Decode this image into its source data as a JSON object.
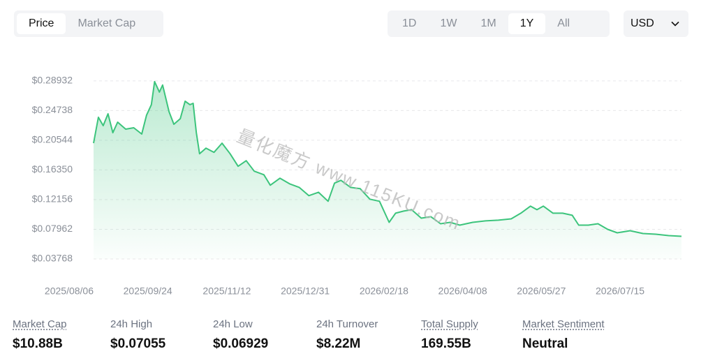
{
  "tabs": [
    "Price",
    "Market Cap"
  ],
  "active_tab": 0,
  "ranges": [
    "1D",
    "1W",
    "1M",
    "1Y",
    "All"
  ],
  "active_range": 3,
  "currency": "USD",
  "watermark": "量化魔方 www.115KU.com",
  "chart_data": {
    "type": "line",
    "color": "#3cc47c",
    "grid": true,
    "x": [
      "2025/08/06",
      "2025/08/09",
      "2025/08/12",
      "2025/08/15",
      "2025/08/18",
      "2025/08/21",
      "2025/08/26",
      "2025/08/31",
      "2025/09/05",
      "2025/09/08",
      "2025/09/11",
      "2025/09/13",
      "2025/09/16",
      "2025/09/18",
      "2025/09/22",
      "2025/09/25",
      "2025/09/29",
      "2025/10/02",
      "2025/10/05",
      "2025/10/07",
      "2025/10/09",
      "2025/10/11",
      "2025/10/15",
      "2025/10/20",
      "2025/10/25",
      "2025/10/30",
      "2025/11/04",
      "2025/11/09",
      "2025/11/14",
      "2025/11/20",
      "2025/11/24",
      "2025/11/30",
      "2025/12/06",
      "2025/12/12",
      "2025/12/18",
      "2025/12/24",
      "2025/12/30",
      "2026/01/03",
      "2026/01/07",
      "2026/01/13",
      "2026/01/19",
      "2026/01/25",
      "2026/01/31",
      "2026/02/06",
      "2026/02/10",
      "2026/02/15",
      "2026/02/20",
      "2026/02/26",
      "2026/03/04",
      "2026/03/10",
      "2026/03/16",
      "2026/03/22",
      "2026/03/30",
      "2026/04/07",
      "2026/04/15",
      "2026/04/23",
      "2026/04/29",
      "2026/05/05",
      "2026/05/09",
      "2026/05/13",
      "2026/05/19",
      "2026/05/25",
      "2026/05/31",
      "2026/06/04",
      "2026/06/10",
      "2026/06/16",
      "2026/06/22",
      "2026/06/28",
      "2026/07/06",
      "2026/07/14",
      "2026/07/22",
      "2026/07/30",
      "2026/08/07"
    ],
    "values": [
      0.2013,
      0.2379,
      0.226,
      0.2428,
      0.2161,
      0.231,
      0.2211,
      0.2231,
      0.2142,
      0.2409,
      0.2557,
      0.2883,
      0.2735,
      0.2834,
      0.2458,
      0.228,
      0.2359,
      0.2606,
      0.2557,
      0.2576,
      0.2161,
      0.1864,
      0.1943,
      0.1884,
      0.2013,
      0.1864,
      0.1686,
      0.1765,
      0.1617,
      0.1567,
      0.1419,
      0.1518,
      0.1439,
      0.1389,
      0.1271,
      0.132,
      0.1192,
      0.1449,
      0.1488,
      0.1389,
      0.137,
      0.1222,
      0.1192,
      0.0895,
      0.1024,
      0.1053,
      0.1073,
      0.0954,
      0.0974,
      0.0875,
      0.0895,
      0.0855,
      0.0895,
      0.0915,
      0.0925,
      0.0944,
      0.1024,
      0.1123,
      0.1073,
      0.1123,
      0.1024,
      0.1024,
      0.0994,
      0.0855,
      0.0855,
      0.0875,
      0.0796,
      0.0747,
      0.0776,
      0.0737,
      0.0727,
      0.0707,
      0.0697
    ],
    "xlim": [
      "2025/08/06",
      "2026/08/07"
    ],
    "xticks": [
      "2025/08/06",
      "2025/09/24",
      "2025/11/12",
      "2025/12/31",
      "2026/02/18",
      "2026/04/08",
      "2026/05/27",
      "2026/07/15"
    ],
    "ylim": [
      0.03768,
      0.3
    ],
    "yticks": [
      {
        "value": 0.03768,
        "label": "$0.03768"
      },
      {
        "value": 0.07962,
        "label": "$0.07962"
      },
      {
        "value": 0.12156,
        "label": "$0.12156"
      },
      {
        "value": 0.1635,
        "label": "$0.16350"
      },
      {
        "value": 0.20544,
        "label": "$0.20544"
      },
      {
        "value": 0.24738,
        "label": "$0.24738"
      },
      {
        "value": 0.28932,
        "label": "$0.28932"
      }
    ]
  },
  "stats": [
    {
      "label": "Market Cap",
      "value": "$10.88B",
      "underlined": true
    },
    {
      "label": "24h High",
      "value": "$0.07055",
      "underlined": false
    },
    {
      "label": "24h Low",
      "value": "$0.06929",
      "underlined": false
    },
    {
      "label": "24h Turnover",
      "value": "$8.22M",
      "underlined": false
    },
    {
      "label": "Total Supply",
      "value": "169.55B",
      "underlined": true
    },
    {
      "label": "Market Sentiment",
      "value": "Neutral",
      "underlined": true
    }
  ]
}
